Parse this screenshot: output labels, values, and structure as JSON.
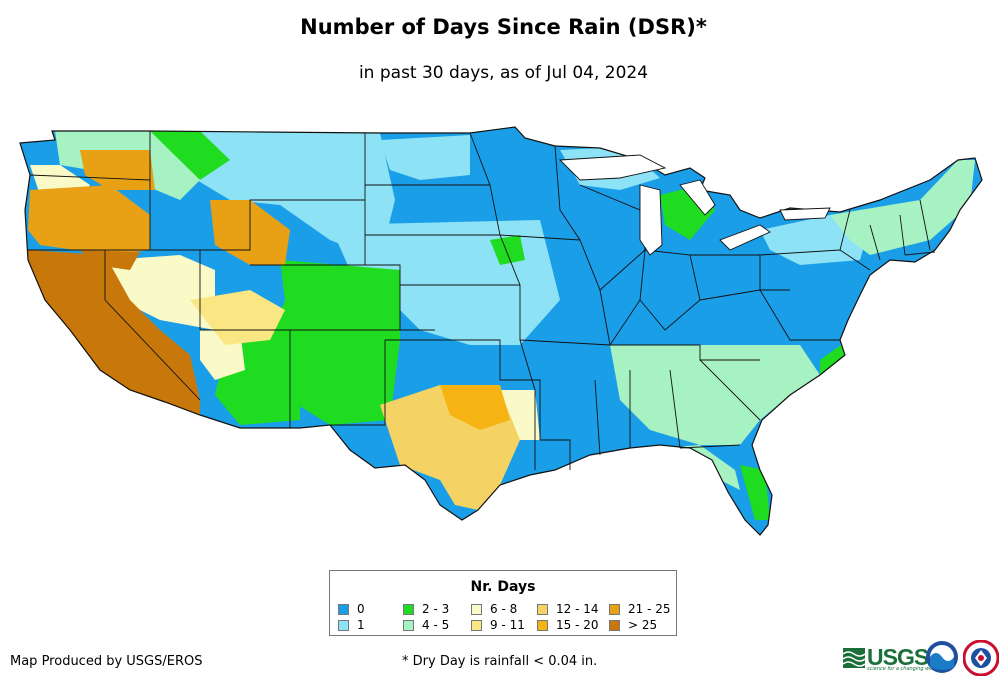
{
  "title": "Number of Days Since Rain (DSR)*",
  "subtitle": "in past 30 days, as of Jul 04, 2024",
  "legend": {
    "title": "Nr. Days",
    "items": [
      {
        "label": "0",
        "color": "#1a9ee8"
      },
      {
        "label": "1",
        "color": "#8ee2f5"
      },
      {
        "label": "2 - 3",
        "color": "#20dc20"
      },
      {
        "label": "4 - 5",
        "color": "#a6f2c2"
      },
      {
        "label": "6 - 8",
        "color": "#fafac8"
      },
      {
        "label": "9 - 11",
        "color": "#fae682"
      },
      {
        "label": "12 - 14",
        "color": "#f5d264"
      },
      {
        "label": "15 - 20",
        "color": "#f5b414"
      },
      {
        "label": "21 - 25",
        "color": "#e8a014"
      },
      {
        "label": "> 25",
        "color": "#c8780a"
      }
    ]
  },
  "footer": {
    "credit": "Map Produced by USGS/EROS",
    "note": "* Dry Day is rainfall < 0.04 in."
  },
  "logos": {
    "usgs": "USGS",
    "usgs_tagline": "science for a changing world",
    "noaa": "noaa-logo-icon",
    "nws": "nws-logo-icon"
  }
}
